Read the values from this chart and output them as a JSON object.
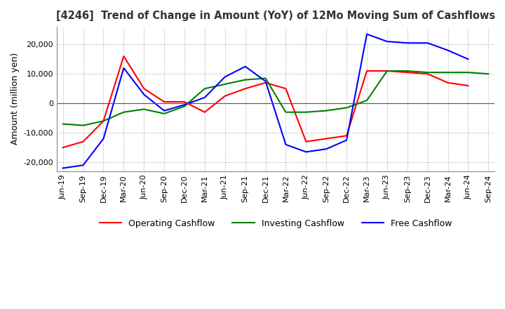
{
  "title": "[4246]  Trend of Change in Amount (YoY) of 12Mo Moving Sum of Cashflows",
  "ylabel": "Amount (million yen)",
  "ylim": [
    -23000,
    26000
  ],
  "yticks": [
    -20000,
    -10000,
    0,
    10000,
    20000
  ],
  "x_labels": [
    "Jun-19",
    "Sep-19",
    "Dec-19",
    "Mar-20",
    "Jun-20",
    "Sep-20",
    "Dec-20",
    "Mar-21",
    "Jun-21",
    "Sep-21",
    "Dec-21",
    "Mar-22",
    "Jun-22",
    "Sep-22",
    "Dec-22",
    "Mar-23",
    "Jun-23",
    "Sep-23",
    "Dec-23",
    "Mar-24",
    "Jun-24",
    "Sep-24"
  ],
  "operating": [
    -15000,
    -13000,
    -6000,
    16000,
    5000,
    500,
    500,
    -3000,
    2500,
    5000,
    7000,
    5000,
    -13000,
    -12000,
    -11000,
    11000,
    11000,
    10500,
    10000,
    7000,
    6000,
    null
  ],
  "investing": [
    -7000,
    -7500,
    -6000,
    -3000,
    -2000,
    -3500,
    -1000,
    5000,
    6500,
    8000,
    8500,
    -3000,
    -3000,
    -2500,
    -1500,
    1000,
    11000,
    11000,
    10500,
    10500,
    10500,
    10000
  ],
  "free": [
    -22000,
    -21000,
    -12000,
    12000,
    3000,
    -2500,
    -500,
    2000,
    9000,
    12500,
    7500,
    -14000,
    -16500,
    -15500,
    -12500,
    23500,
    21000,
    20500,
    20500,
    18000,
    15000,
    null
  ],
  "operating_color": "#ff0000",
  "investing_color": "#008000",
  "free_color": "#0000ff",
  "background_color": "#ffffff",
  "grid_color": "#aaaaaa"
}
